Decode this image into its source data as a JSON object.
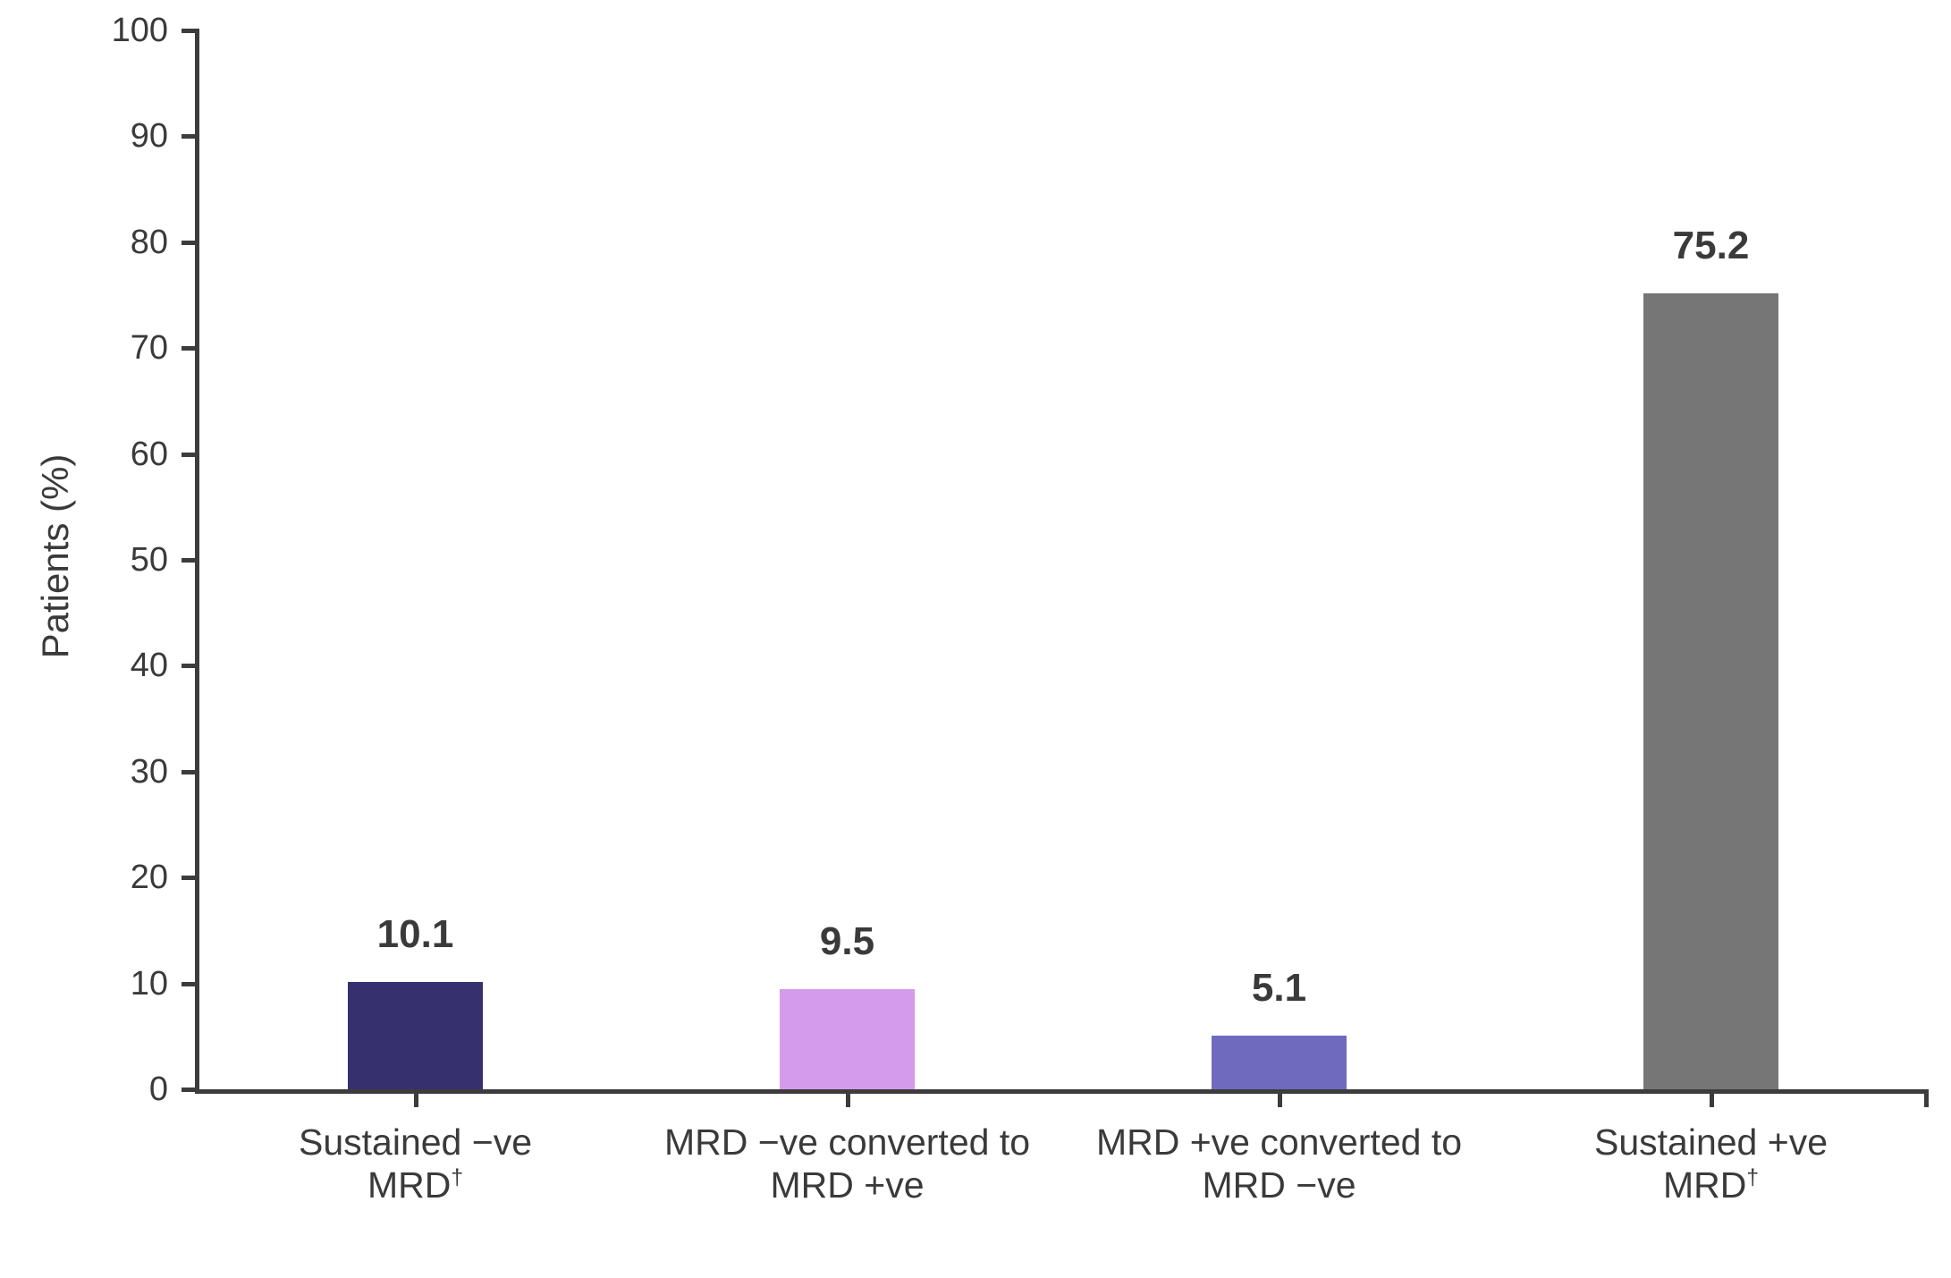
{
  "chart_data": {
    "type": "bar",
    "ylabel": "Patients (%)",
    "ylim": [
      0,
      100
    ],
    "yticks": [
      0,
      10,
      20,
      30,
      40,
      50,
      60,
      70,
      80,
      90,
      100
    ],
    "grid": false,
    "legend": false,
    "categories": [
      {
        "lines": [
          "Sustained −ve",
          "MRD"
        ],
        "sup": "†"
      },
      {
        "lines": [
          "MRD −ve converted to",
          "MRD +ve"
        ],
        "sup": ""
      },
      {
        "lines": [
          "MRD +ve converted to",
          "MRD −ve"
        ],
        "sup": ""
      },
      {
        "lines": [
          "Sustained +ve",
          "MRD"
        ],
        "sup": "†"
      }
    ],
    "categories_text": [
      "Sustained −ve MRD†",
      "MRD −ve converted to MRD +ve",
      "MRD +ve converted to MRD −ve",
      "Sustained +ve MRD†"
    ],
    "values": [
      10.1,
      9.5,
      5.1,
      75.2
    ],
    "value_labels": [
      "10.1",
      "9.5",
      "5.1",
      "75.2"
    ],
    "bar_colors": [
      "#36316E",
      "#D49AEC",
      "#6F6ABE",
      "#767676"
    ],
    "axis_color": "#3C3C3C",
    "text_color": "#3A3A3A"
  }
}
